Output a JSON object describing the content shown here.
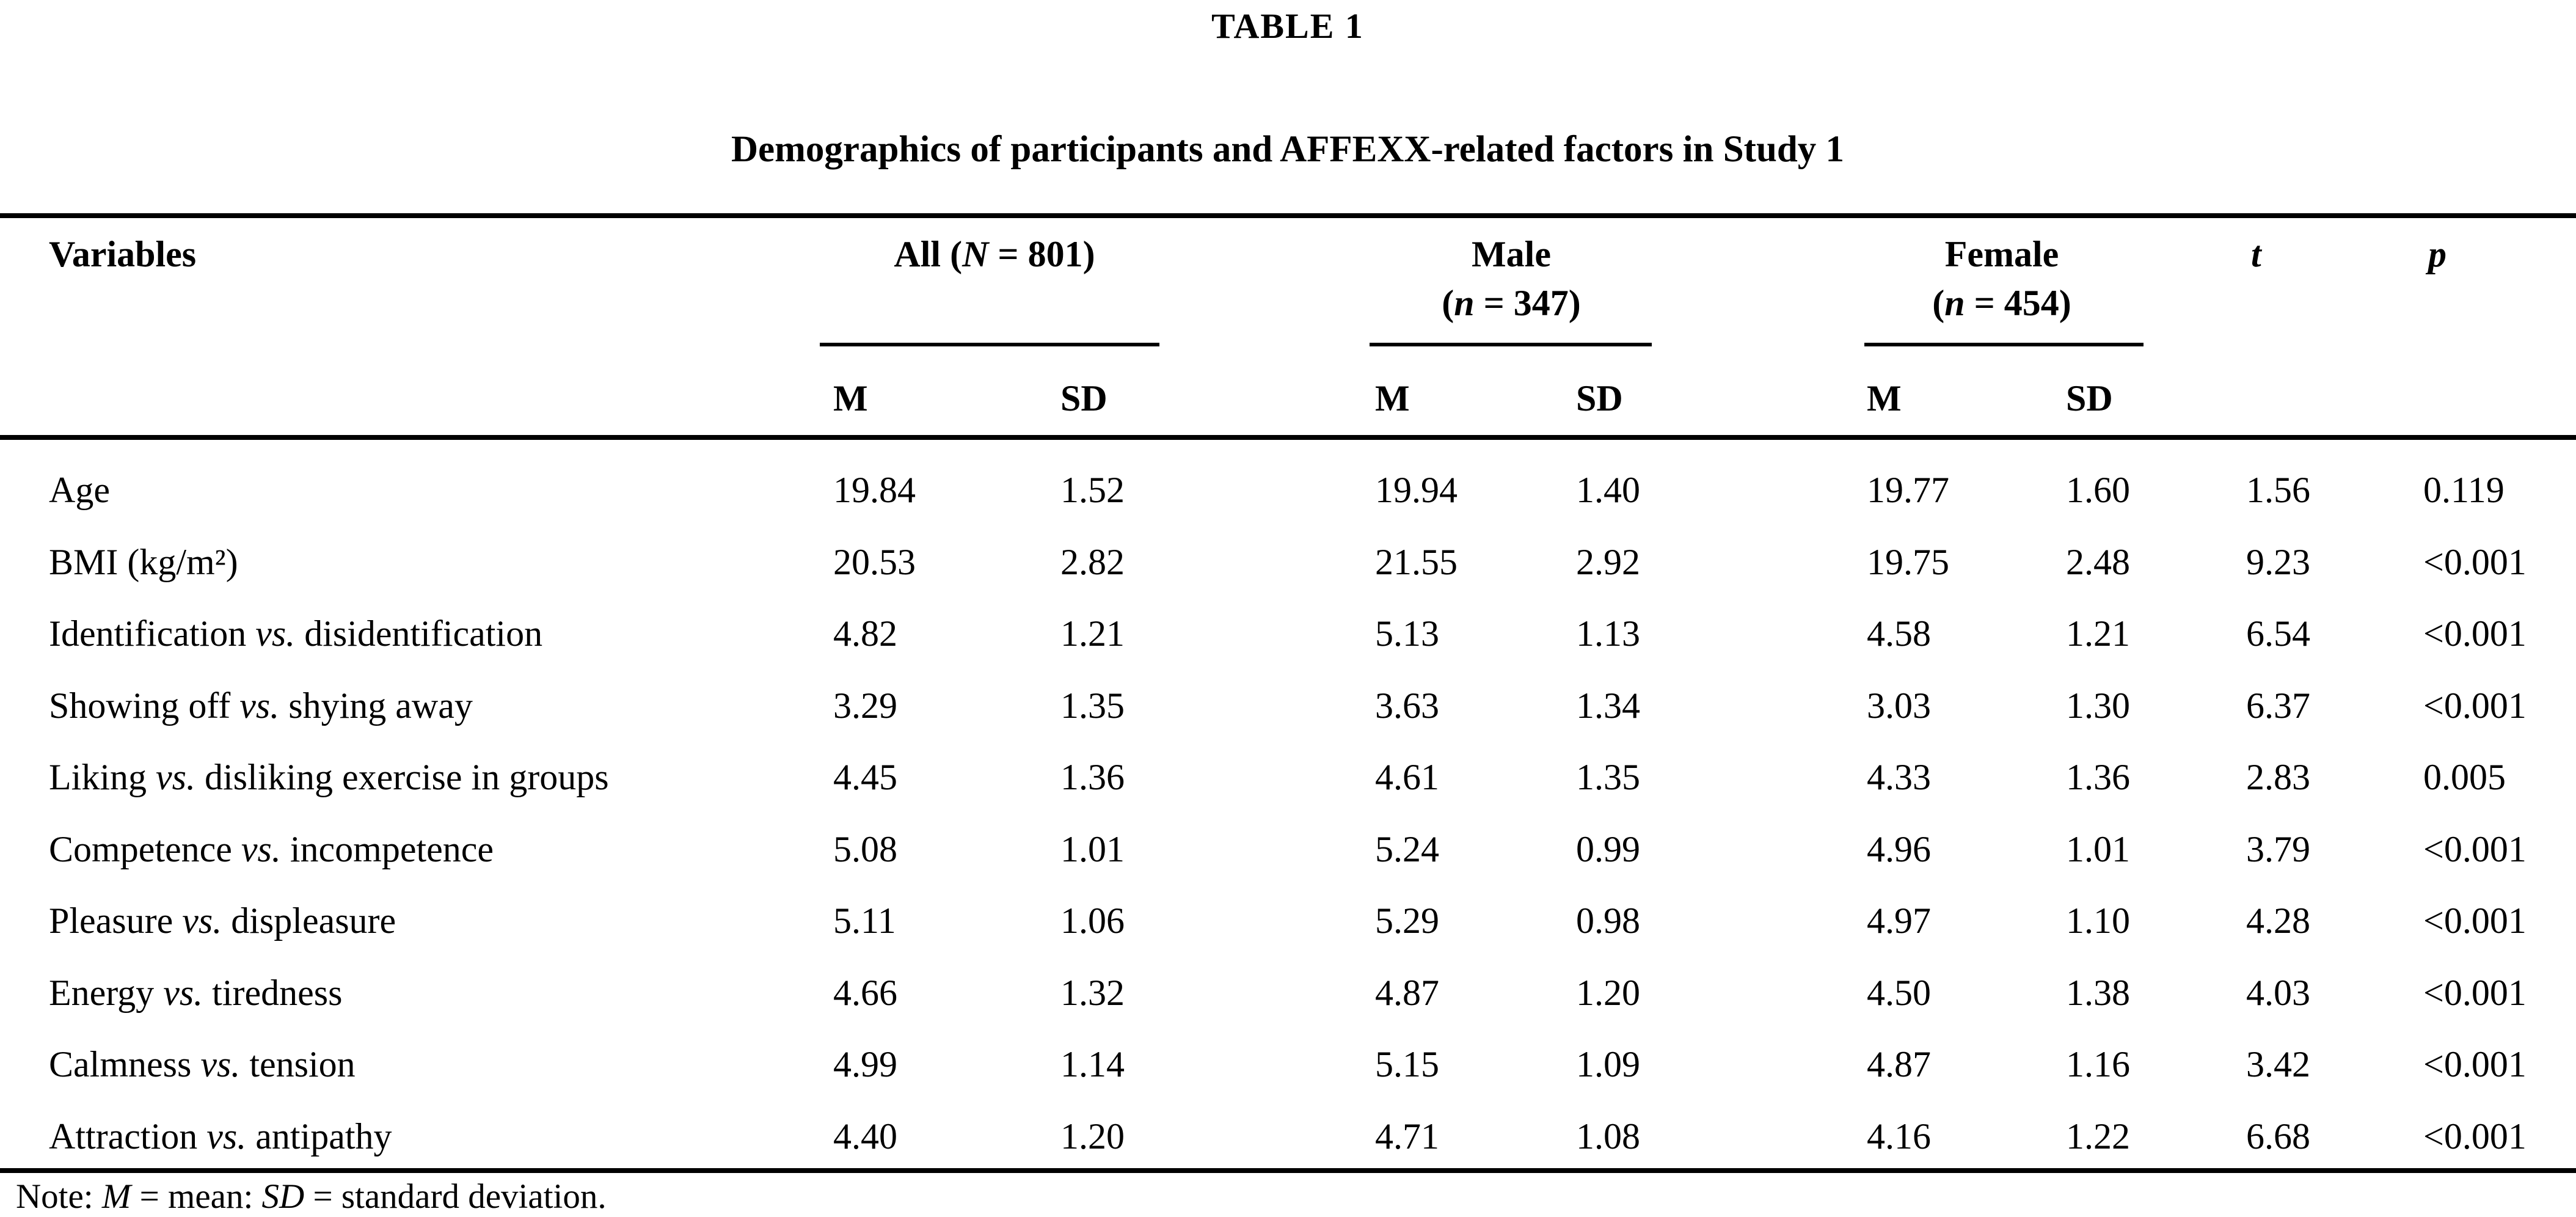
{
  "table_label": "TABLE 1",
  "title": "Demographics of participants and AFFEXX-related factors in Study 1",
  "header": {
    "variables_label": "Variables",
    "groups": {
      "all": {
        "pre": "All (",
        "n_symbol": "N",
        "post": " = 801)"
      },
      "male": {
        "label": "Male",
        "pre": "(",
        "n_symbol": "n",
        "post": " = 347)"
      },
      "female": {
        "label": "Female",
        "pre": "(",
        "n_symbol": "n",
        "post": " = 454)"
      }
    },
    "stat_m": "M",
    "stat_sd": "SD",
    "t_label": "t",
    "p_label": "p"
  },
  "rows": [
    {
      "variable": "Age",
      "all_m": "19.84",
      "all_sd": "1.52",
      "male_m": "19.94",
      "male_sd": "1.40",
      "female_m": "19.77",
      "female_sd": "1.60",
      "t": "1.56",
      "p": "0.119"
    },
    {
      "variable": "BMI (kg/m²)",
      "all_m": "20.53",
      "all_sd": "2.82",
      "male_m": "21.55",
      "male_sd": "2.92",
      "female_m": "19.75",
      "female_sd": "2.48",
      "t": "9.23",
      "p": "<0.001"
    },
    {
      "variable": "Identification vs. disidentification",
      "all_m": "4.82",
      "all_sd": "1.21",
      "male_m": "5.13",
      "male_sd": "1.13",
      "female_m": "4.58",
      "female_sd": "1.21",
      "t": "6.54",
      "p": "<0.001"
    },
    {
      "variable": "Showing off vs. shying away",
      "all_m": "3.29",
      "all_sd": "1.35",
      "male_m": "3.63",
      "male_sd": "1.34",
      "female_m": "3.03",
      "female_sd": "1.30",
      "t": "6.37",
      "p": "<0.001"
    },
    {
      "variable": "Liking vs. disliking exercise in groups",
      "all_m": "4.45",
      "all_sd": "1.36",
      "male_m": "4.61",
      "male_sd": "1.35",
      "female_m": "4.33",
      "female_sd": "1.36",
      "t": "2.83",
      "p": "0.005"
    },
    {
      "variable": "Competence vs. incompetence",
      "all_m": "5.08",
      "all_sd": "1.01",
      "male_m": "5.24",
      "male_sd": "0.99",
      "female_m": "4.96",
      "female_sd": "1.01",
      "t": "3.79",
      "p": "<0.001"
    },
    {
      "variable": "Pleasure vs. displeasure",
      "all_m": "5.11",
      "all_sd": "1.06",
      "male_m": "5.29",
      "male_sd": "0.98",
      "female_m": "4.97",
      "female_sd": "1.10",
      "t": "4.28",
      "p": "<0.001"
    },
    {
      "variable": "Energy vs. tiredness",
      "all_m": "4.66",
      "all_sd": "1.32",
      "male_m": "4.87",
      "male_sd": "1.20",
      "female_m": "4.50",
      "female_sd": "1.38",
      "t": "4.03",
      "p": "<0.001"
    },
    {
      "variable": "Calmness vs. tension",
      "all_m": "4.99",
      "all_sd": "1.14",
      "male_m": "5.15",
      "male_sd": "1.09",
      "female_m": "4.87",
      "female_sd": "1.16",
      "t": "3.42",
      "p": "<0.001"
    },
    {
      "variable": "Attraction vs. antipathy",
      "all_m": "4.40",
      "all_sd": "1.20",
      "male_m": "4.71",
      "male_sd": "1.08",
      "female_m": "4.16",
      "female_sd": "1.22",
      "t": "6.68",
      "p": "<0.001"
    }
  ],
  "note_parts": [
    "Note: ",
    "M",
    " = mean: ",
    "SD",
    " = standard deviation."
  ]
}
